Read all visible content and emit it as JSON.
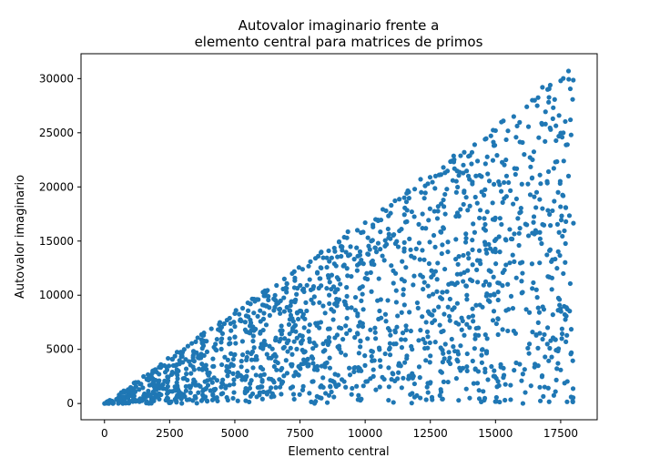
{
  "chart_data": {
    "type": "scatter",
    "title_lines": [
      "Autovalor imaginario frente a",
      "elemento central para matrices de primos"
    ],
    "xlabel": "Elemento central",
    "ylabel": "Autovalor imaginario",
    "xlim": [
      -900,
      18900
    ],
    "ylim": [
      -1500,
      32300
    ],
    "xticks": [
      0,
      2500,
      5000,
      7500,
      10000,
      12500,
      15000,
      17500
    ],
    "yticks": [
      0,
      5000,
      10000,
      15000,
      20000,
      25000,
      30000
    ],
    "xtick_labels": [
      "0",
      "2500",
      "5000",
      "7500",
      "10000",
      "12500",
      "15000",
      "17500"
    ],
    "ytick_labels": [
      "0",
      "5000",
      "10000",
      "15000",
      "20000",
      "25000",
      "30000"
    ],
    "marker_color": "#1f77b4",
    "grid": false,
    "legend": "none",
    "point_count": 1500,
    "envelope": {
      "upper_slope": 1.71,
      "x_range": [
        0,
        18000
      ]
    },
    "points": [
      [
        0,
        0
      ],
      [
        300,
        200
      ],
      [
        500,
        300
      ],
      [
        700,
        600
      ],
      [
        900,
        1100
      ],
      [
        1100,
        900
      ],
      [
        1400,
        1800
      ],
      [
        1700,
        2300
      ],
      [
        2000,
        2900
      ],
      [
        2300,
        3500
      ],
      [
        2600,
        4100
      ],
      [
        2900,
        4700
      ],
      [
        3200,
        5300
      ],
      [
        3500,
        5700
      ],
      [
        3800,
        6300
      ],
      [
        4100,
        6900
      ],
      [
        4400,
        7300
      ],
      [
        4700,
        7700
      ],
      [
        5000,
        8300
      ],
      [
        5300,
        8800
      ],
      [
        5600,
        9200
      ],
      [
        5900,
        9600
      ],
      [
        6200,
        10300
      ],
      [
        6600,
        10900
      ],
      [
        6900,
        11500
      ],
      [
        7200,
        12000
      ],
      [
        7600,
        12400
      ],
      [
        7900,
        13100
      ],
      [
        8200,
        13600
      ],
      [
        8600,
        14100
      ],
      [
        9000,
        14900
      ],
      [
        9300,
        15300
      ],
      [
        9700,
        16000
      ],
      [
        10000,
        16700
      ],
      [
        10400,
        17000
      ],
      [
        10800,
        17800
      ],
      [
        11000,
        18300
      ],
      [
        11500,
        19000
      ],
      [
        11900,
        19800
      ],
      [
        12300,
        20100
      ],
      [
        12700,
        21000
      ],
      [
        13000,
        21800
      ],
      [
        13400,
        22300
      ],
      [
        13800,
        23200
      ],
      [
        14200,
        23900
      ],
      [
        14600,
        24400
      ],
      [
        15000,
        25200
      ],
      [
        15300,
        26100
      ],
      [
        15700,
        26500
      ],
      [
        16200,
        27400
      ],
      [
        16500,
        28000
      ],
      [
        16800,
        29200
      ],
      [
        17100,
        29400
      ],
      [
        17500,
        29800
      ],
      [
        17800,
        30700
      ],
      [
        17000,
        29000
      ],
      [
        16600,
        27500
      ],
      [
        17200,
        26300
      ],
      [
        17600,
        25000
      ],
      [
        17900,
        24800
      ],
      [
        16900,
        24200
      ],
      [
        16100,
        23000
      ],
      [
        15400,
        22500
      ],
      [
        14700,
        21200
      ],
      [
        14000,
        20700
      ],
      [
        13500,
        19500
      ],
      [
        12800,
        18200
      ],
      [
        12200,
        17500
      ],
      [
        11600,
        16800
      ],
      [
        11100,
        15600
      ],
      [
        10500,
        14800
      ],
      [
        9800,
        13700
      ],
      [
        9200,
        12800
      ],
      [
        8600,
        11600
      ],
      [
        8000,
        10600
      ],
      [
        7300,
        9500
      ],
      [
        6700,
        8700
      ],
      [
        6100,
        7800
      ],
      [
        5400,
        6800
      ],
      [
        4800,
        6000
      ],
      [
        4200,
        5200
      ],
      [
        3600,
        4400
      ],
      [
        3000,
        3800
      ],
      [
        2400,
        3100
      ],
      [
        1800,
        2500
      ],
      [
        17800,
        21000
      ],
      [
        17400,
        19500
      ],
      [
        16800,
        18000
      ],
      [
        16200,
        16500
      ],
      [
        15600,
        15200
      ],
      [
        15000,
        14000
      ],
      [
        14400,
        13200
      ],
      [
        13800,
        12100
      ],
      [
        13200,
        11000
      ],
      [
        12600,
        10100
      ],
      [
        12000,
        9300
      ],
      [
        11400,
        8400
      ],
      [
        10800,
        7600
      ],
      [
        10200,
        6800
      ],
      [
        9600,
        6100
      ],
      [
        9000,
        5300
      ],
      [
        8400,
        4800
      ],
      [
        7800,
        4100
      ],
      [
        7200,
        3600
      ],
      [
        6600,
        3100
      ],
      [
        6000,
        2600
      ],
      [
        5400,
        2200
      ],
      [
        4800,
        1700
      ],
      [
        4200,
        1300
      ],
      [
        3600,
        1000
      ],
      [
        3000,
        700
      ],
      [
        2400,
        500
      ],
      [
        1800,
        300
      ],
      [
        1200,
        200
      ],
      [
        17900,
        600
      ],
      [
        17300,
        1100
      ],
      [
        16700,
        1500
      ],
      [
        16000,
        2100
      ],
      [
        15300,
        2400
      ],
      [
        14600,
        2900
      ],
      [
        13900,
        3400
      ],
      [
        13200,
        3900
      ],
      [
        12500,
        4400
      ],
      [
        11800,
        5000
      ],
      [
        11100,
        5500
      ],
      [
        10400,
        6000
      ],
      [
        9700,
        6500
      ],
      [
        9000,
        7000
      ],
      [
        8300,
        7500
      ],
      [
        7600,
        8000
      ],
      [
        6900,
        8500
      ],
      [
        6200,
        9000
      ],
      [
        5500,
        9300
      ],
      [
        17600,
        12000
      ],
      [
        17100,
        14200
      ],
      [
        16400,
        12900
      ],
      [
        15800,
        11600
      ],
      [
        15100,
        10300
      ],
      [
        14400,
        9100
      ],
      [
        13700,
        7900
      ],
      [
        13000,
        6700
      ],
      [
        12300,
        5600
      ],
      [
        11600,
        4400
      ],
      [
        10900,
        3300
      ],
      [
        10200,
        2300
      ],
      [
        9500,
        1400
      ],
      [
        8800,
        600
      ],
      [
        8100,
        200
      ],
      [
        17500,
        3100
      ],
      [
        16900,
        4300
      ],
      [
        16300,
        5500
      ],
      [
        15700,
        6700
      ],
      [
        15100,
        7800
      ],
      [
        14500,
        8900
      ],
      [
        13900,
        10000
      ],
      [
        13300,
        11100
      ],
      [
        12700,
        12200
      ],
      [
        12100,
        13300
      ],
      [
        11500,
        14300
      ],
      [
        10900,
        15300
      ],
      [
        10300,
        16300
      ],
      [
        17200,
        8200
      ],
      [
        16600,
        9800
      ],
      [
        16000,
        11300
      ],
      [
        15400,
        12800
      ],
      [
        14800,
        14300
      ],
      [
        14200,
        15800
      ],
      [
        13600,
        17300
      ],
      [
        13000,
        18800
      ],
      [
        17700,
        5700
      ],
      [
        17000,
        7000
      ],
      [
        16300,
        8400
      ],
      [
        15600,
        9900
      ],
      [
        14900,
        17000
      ],
      [
        14300,
        18500
      ],
      [
        15500,
        20400
      ],
      [
        16400,
        20800
      ],
      [
        17300,
        22300
      ],
      [
        17700,
        16800
      ],
      [
        16700,
        15800
      ],
      [
        15900,
        14600
      ],
      [
        15200,
        3600
      ],
      [
        14500,
        5000
      ],
      [
        13800,
        6300
      ],
      [
        12900,
        1300
      ],
      [
        12100,
        2400
      ],
      [
        11300,
        3700
      ],
      [
        10600,
        9600
      ],
      [
        9900,
        10800
      ],
      [
        9300,
        9900
      ],
      [
        8700,
        8700
      ],
      [
        8100,
        7400
      ],
      [
        7500,
        6300
      ],
      [
        6900,
        5200
      ],
      [
        6300,
        4200
      ],
      [
        5700,
        3300
      ],
      [
        5100,
        2500
      ],
      [
        4500,
        1900
      ],
      [
        3900,
        1400
      ],
      [
        3300,
        1000
      ],
      [
        2700,
        1200
      ],
      [
        2100,
        800
      ],
      [
        1500,
        700
      ],
      [
        900,
        500
      ],
      [
        600,
        400
      ]
    ]
  }
}
